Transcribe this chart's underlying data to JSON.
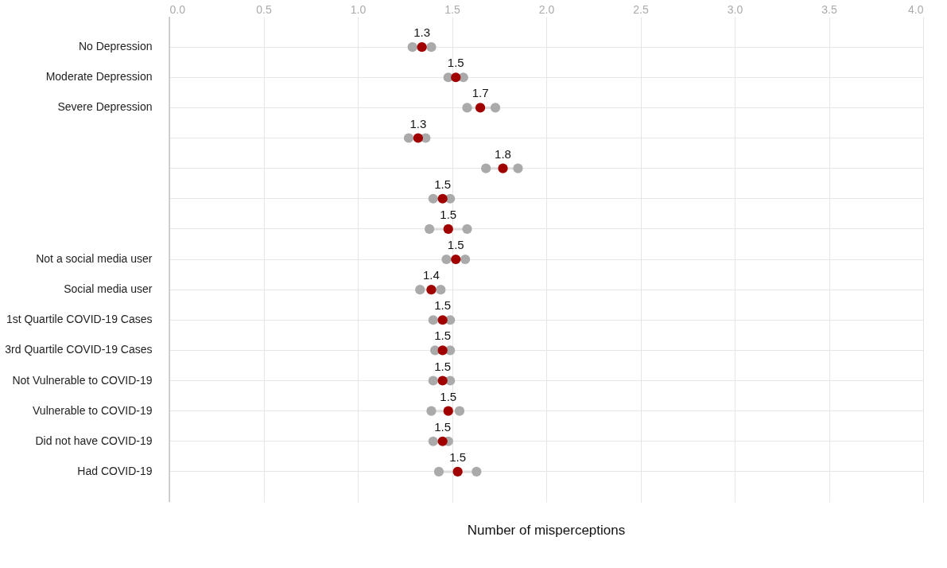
{
  "chart_data": {
    "type": "scatter",
    "categories": [
      "No Depression",
      "Moderate Depression",
      "Severe Depression",
      null,
      null,
      null,
      null,
      "Not a social media user",
      "Social media user",
      "1st Quartile COVID-19 Cases",
      "3rd Quartile COVID-19 Cases",
      "Not Vulnerable to COVID-19",
      "Vulnerable to COVID-19",
      "Did not have COVID-19",
      "Had COVID-19"
    ],
    "series": [
      {
        "color": "#aaaaaa",
        "values": [
          1.29,
          1.48,
          1.58,
          1.27,
          1.68,
          1.4,
          1.38,
          1.47,
          1.33,
          1.4,
          1.41,
          1.4,
          1.39,
          1.4,
          1.43
        ]
      },
      {
        "color": "#aaaaaa",
        "values": [
          1.39,
          1.56,
          1.73,
          1.36,
          1.85,
          1.49,
          1.58,
          1.57,
          1.44,
          1.49,
          1.49,
          1.49,
          1.54,
          1.48,
          1.63
        ]
      },
      {
        "color": "#a00000",
        "values": [
          1.34,
          1.52,
          1.65,
          1.32,
          1.77,
          1.45,
          1.48,
          1.52,
          1.39,
          1.45,
          1.45,
          1.45,
          1.48,
          1.45,
          1.53
        ],
        "value_labels": [
          "1.3",
          "1.5",
          "1.7",
          "1.3",
          "1.8",
          "1.5",
          "1.5",
          "1.5",
          "1.4",
          "1.5",
          "1.5",
          "1.5",
          "1.5",
          "1.5",
          "1.5"
        ]
      }
    ],
    "xlabel": "Number of misperceptions",
    "xlim": [
      0,
      4
    ],
    "xticks": [
      {
        "value": 0,
        "label": "0.0"
      },
      {
        "value": 0.5,
        "label": "0.5"
      },
      {
        "value": 1,
        "label": "1.0"
      },
      {
        "value": 1.5,
        "label": "1.5"
      },
      {
        "value": 2,
        "label": "2.0"
      },
      {
        "value": 2.5,
        "label": "2.5"
      },
      {
        "value": 3,
        "label": "3.0"
      },
      {
        "value": 3.5,
        "label": "3.5"
      },
      {
        "value": 4,
        "label": "4.0"
      }
    ],
    "orientation": "horizontal",
    "grid": true,
    "marker": "circle"
  }
}
